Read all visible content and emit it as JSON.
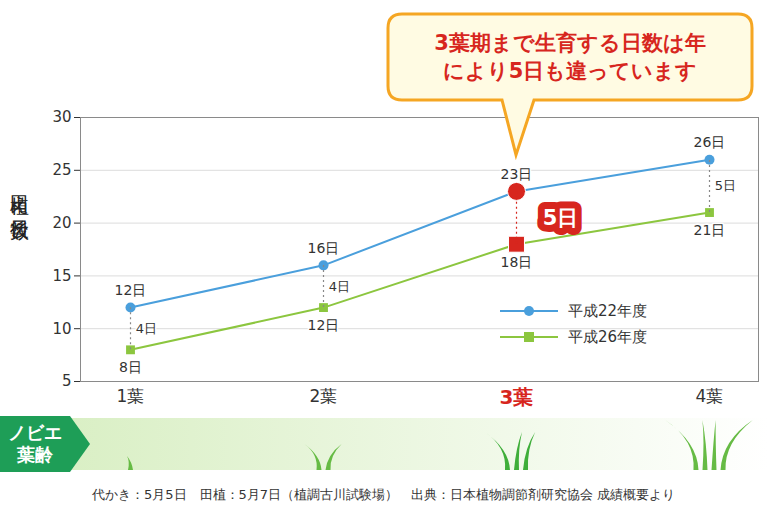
{
  "chart_data": {
    "type": "line",
    "ylabel": "田植え後日数",
    "xlabel": "ノビエ葉齢",
    "categories": [
      "1葉",
      "2葉",
      "3葉",
      "4葉"
    ],
    "series": [
      {
        "name": "平成22年度",
        "color": "#4a9fdc",
        "marker": "circle",
        "values": [
          12,
          16,
          23,
          26
        ],
        "value_labels": [
          "12日",
          "16日",
          "23日",
          "26日"
        ]
      },
      {
        "name": "平成26年度",
        "color": "#8cc63f",
        "marker": "square",
        "values": [
          8,
          12,
          18,
          21
        ],
        "value_labels": [
          "8日",
          "12日",
          "18日",
          "21日"
        ]
      }
    ],
    "ylim": [
      5,
      30
    ],
    "yticks": [
      5,
      10,
      15,
      20,
      25,
      30
    ],
    "grid": true,
    "data_labels": true,
    "legend": "lower right",
    "annotations": [
      {
        "text": "3葉期まで生育する日数は年により5日も違っています",
        "x": "3葉"
      }
    ],
    "differences": {
      "values": [
        4,
        4,
        5,
        5
      ],
      "value_labels": [
        "4日",
        "4日",
        "5日",
        "5日"
      ]
    },
    "caption": "代かき：5月5日　田植：5月7日（植調古川試験場）　出典：日本植物調節剤研究協会 成績概要より"
  }
}
